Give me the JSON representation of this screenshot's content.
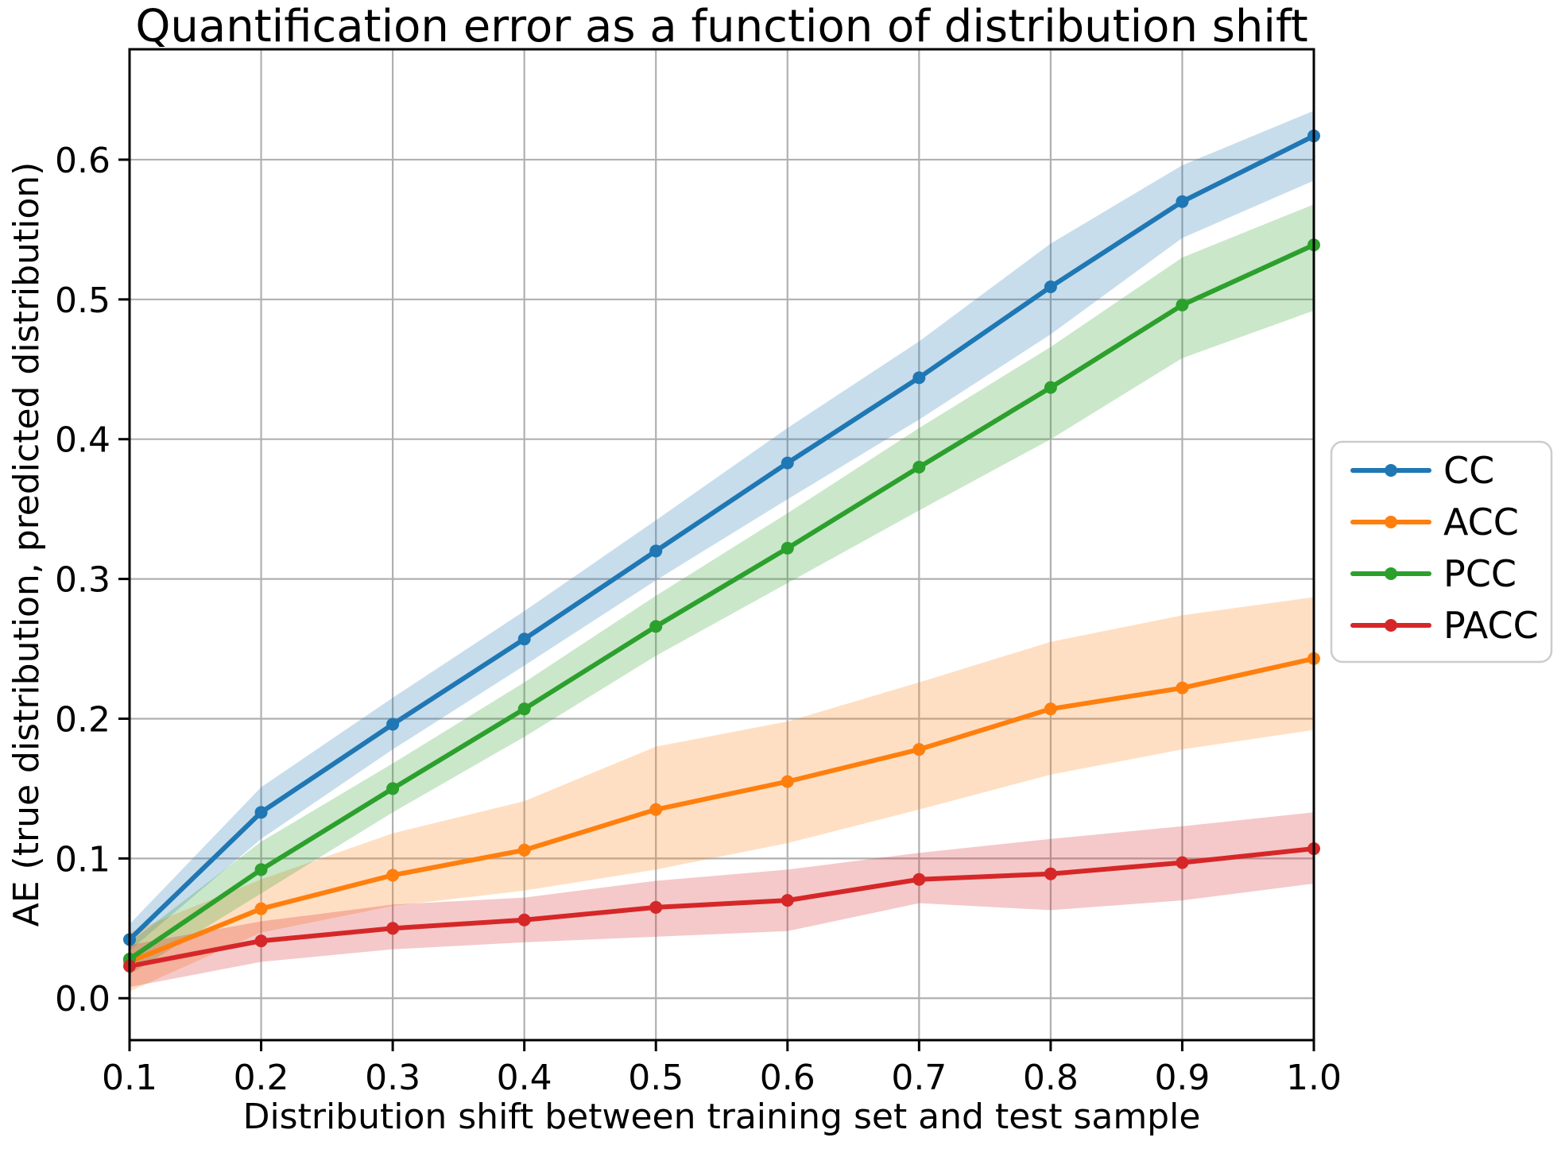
{
  "chart_data": {
    "type": "line",
    "title": "Quantification error as a function of distribution shift",
    "xlabel": "Distribution shift between training set and test sample",
    "ylabel": "AE (true distribution, predicted distribution)",
    "grid": true,
    "grid_color": "#b0b0b0",
    "background_color": "#ffffff",
    "spine_color": "#000000",
    "band_opacity": 0.25,
    "xlim": [
      0.1,
      1.0
    ],
    "ylim": [
      -0.03,
      0.679
    ],
    "x": [
      0.1,
      0.2,
      0.3,
      0.4,
      0.5,
      0.6,
      0.7,
      0.8,
      0.9,
      1.0
    ],
    "xticks": {
      "values": [
        0.1,
        0.2,
        0.3,
        0.4,
        0.5,
        0.6,
        0.7,
        0.8,
        0.9,
        1.0
      ],
      "labels": [
        "0.1",
        "0.2",
        "0.3",
        "0.4",
        "0.5",
        "0.6",
        "0.7",
        "0.8",
        "0.9",
        "1.0"
      ]
    },
    "yticks": {
      "values": [
        0.0,
        0.1,
        0.2,
        0.3,
        0.4,
        0.5,
        0.6
      ],
      "labels": [
        "0.0",
        "0.1",
        "0.2",
        "0.3",
        "0.4",
        "0.5",
        "0.6"
      ]
    },
    "legend": {
      "position": "center-right-outside",
      "entries": [
        "CC",
        "ACC",
        "PCC",
        "PACC"
      ]
    },
    "series": [
      {
        "name": "CC",
        "color": "#1f77b4",
        "values": [
          0.042,
          0.133,
          0.196,
          0.257,
          0.32,
          0.383,
          0.444,
          0.509,
          0.57,
          0.617
        ],
        "band_lower": [
          0.034,
          0.114,
          0.178,
          0.238,
          0.299,
          0.357,
          0.414,
          0.475,
          0.544,
          0.585
        ],
        "band_upper": [
          0.053,
          0.151,
          0.215,
          0.277,
          0.342,
          0.408,
          0.47,
          0.54,
          0.596,
          0.635
        ]
      },
      {
        "name": "ACC",
        "color": "#ff7f0e",
        "values": [
          0.026,
          0.064,
          0.088,
          0.106,
          0.135,
          0.155,
          0.178,
          0.207,
          0.222,
          0.243
        ],
        "band_lower": [
          0.005,
          0.047,
          0.066,
          0.077,
          0.092,
          0.111,
          0.135,
          0.16,
          0.178,
          0.192
        ],
        "band_upper": [
          0.047,
          0.085,
          0.118,
          0.141,
          0.18,
          0.198,
          0.226,
          0.255,
          0.274,
          0.287
        ]
      },
      {
        "name": "PCC",
        "color": "#2ca02c",
        "values": [
          0.028,
          0.092,
          0.15,
          0.207,
          0.266,
          0.322,
          0.38,
          0.437,
          0.496,
          0.539
        ],
        "band_lower": [
          0.017,
          0.075,
          0.133,
          0.187,
          0.245,
          0.297,
          0.349,
          0.4,
          0.458,
          0.492
        ],
        "band_upper": [
          0.04,
          0.112,
          0.168,
          0.226,
          0.288,
          0.347,
          0.408,
          0.466,
          0.53,
          0.568
        ]
      },
      {
        "name": "PACC",
        "color": "#d62728",
        "values": [
          0.023,
          0.041,
          0.05,
          0.056,
          0.065,
          0.07,
          0.085,
          0.089,
          0.097,
          0.107
        ],
        "band_lower": [
          0.008,
          0.026,
          0.035,
          0.04,
          0.044,
          0.048,
          0.068,
          0.063,
          0.07,
          0.082
        ],
        "band_upper": [
          0.038,
          0.055,
          0.067,
          0.072,
          0.084,
          0.092,
          0.104,
          0.114,
          0.123,
          0.133
        ]
      }
    ]
  }
}
